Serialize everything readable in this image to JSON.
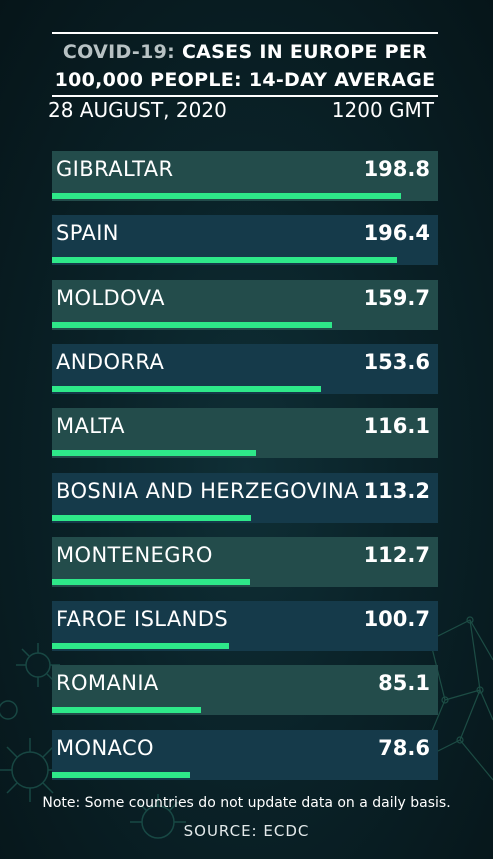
{
  "header": {
    "title_lead": "COVID-19:",
    "title_rest": "CASES IN EUROPE PER",
    "title_line2": "100,000 PEOPLE: 14-DAY AVERAGE",
    "date": "28 AUGUST, 2020",
    "time": "1200 GMT"
  },
  "colors": {
    "bar": "#2ee889",
    "row_odd": "#234c4b",
    "row_even": "#153a4a"
  },
  "chart_data": {
    "type": "bar",
    "orientation": "horizontal",
    "categories": [
      "GIBRALTAR",
      "SPAIN",
      "MOLDOVA",
      "ANDORRA",
      "MALTA",
      "BOSNIA AND HERZEGOVINA",
      "MONTENEGRO",
      "FAROE ISLANDS",
      "ROMANIA",
      "MONACO"
    ],
    "value_labels": [
      "198.8",
      "196.4",
      "159.7",
      "153.6",
      "116.1",
      "113.2",
      "112.7",
      "100.7",
      "85.1",
      "78.6"
    ],
    "values": [
      198.8,
      196.4,
      159.7,
      153.6,
      116.1,
      113.2,
      112.7,
      100.7,
      85.1,
      78.6
    ],
    "xlim": [
      0,
      220
    ]
  },
  "footer": {
    "note": "Note: Some countries do not update data on a daily basis.",
    "source": "SOURCE: ECDC"
  }
}
